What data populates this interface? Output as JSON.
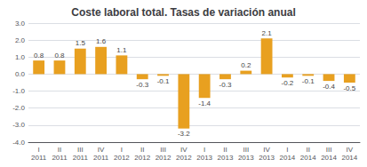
{
  "chart_data": {
    "type": "bar",
    "title": "Coste laboral total. Tasas de variación anual",
    "categories": [
      "I\n2011",
      "II\n2011",
      "III\n2011",
      "IV\n2011",
      "I\n2012",
      "II\n2012",
      "III\n2012",
      "IV\n2012",
      "I\n2013",
      "II\n2013",
      "III\n2013",
      "IV\n2013",
      "I\n2014",
      "II\n2014",
      "III\n2014",
      "IV\n2014"
    ],
    "values": [
      0.8,
      0.8,
      1.5,
      1.6,
      1.1,
      -0.3,
      -0.1,
      -3.2,
      -1.4,
      -0.3,
      0.2,
      2.1,
      -0.2,
      -0.1,
      -0.4,
      -0.5
    ],
    "color": "#E8A020",
    "ylim": [
      -4.0,
      3.0
    ],
    "yticks": [
      {
        "value": -4,
        "label": "-4.0"
      },
      {
        "value": -3,
        "label": "-3.0"
      },
      {
        "value": -2,
        "label": "-2.0"
      },
      {
        "value": -1,
        "label": "-1.0"
      },
      {
        "value": 0,
        "label": "0.0"
      },
      {
        "value": 1,
        "label": "1.0"
      },
      {
        "value": 2,
        "label": "2.0"
      },
      {
        "value": 3,
        "label": "3.0"
      }
    ],
    "grid": true,
    "data_labels": true
  }
}
